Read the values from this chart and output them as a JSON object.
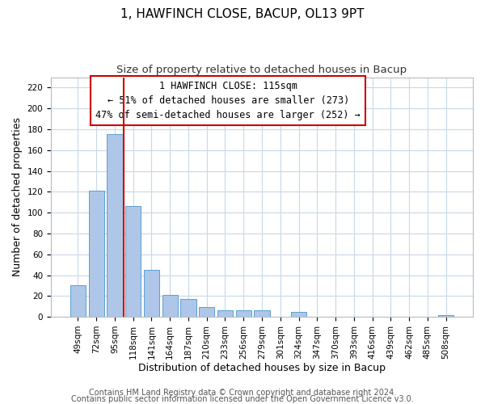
{
  "title": "1, HAWFINCH CLOSE, BACUP, OL13 9PT",
  "subtitle": "Size of property relative to detached houses in Bacup",
  "xlabel": "Distribution of detached houses by size in Bacup",
  "ylabel": "Number of detached properties",
  "bar_labels": [
    "49sqm",
    "72sqm",
    "95sqm",
    "118sqm",
    "141sqm",
    "164sqm",
    "187sqm",
    "210sqm",
    "233sqm",
    "256sqm",
    "279sqm",
    "301sqm",
    "324sqm",
    "347sqm",
    "370sqm",
    "393sqm",
    "416sqm",
    "439sqm",
    "462sqm",
    "485sqm",
    "508sqm"
  ],
  "bar_heights": [
    30,
    121,
    175,
    106,
    45,
    21,
    17,
    9,
    6,
    6,
    6,
    0,
    5,
    0,
    0,
    0,
    0,
    0,
    0,
    0,
    2
  ],
  "bar_color": "#aec6e8",
  "bar_edge_color": "#5a9fd4",
  "vline_color": "#cc0000",
  "ylim": [
    0,
    230
  ],
  "yticks": [
    0,
    20,
    40,
    60,
    80,
    100,
    120,
    140,
    160,
    180,
    200,
    220
  ],
  "annotation_title": "1 HAWFINCH CLOSE: 115sqm",
  "annotation_line1": "← 51% of detached houses are smaller (273)",
  "annotation_line2": "47% of semi-detached houses are larger (252) →",
  "annotation_box_color": "#ffffff",
  "annotation_box_edge": "#cc0000",
  "footer1": "Contains HM Land Registry data © Crown copyright and database right 2024.",
  "footer2": "Contains public sector information licensed under the Open Government Licence v3.0.",
  "title_fontsize": 11,
  "subtitle_fontsize": 9.5,
  "axis_label_fontsize": 9,
  "tick_fontsize": 7.5,
  "ann_fontsize": 8.5,
  "footer_fontsize": 7,
  "background_color": "#ffffff",
  "grid_color": "#c8d8e8"
}
